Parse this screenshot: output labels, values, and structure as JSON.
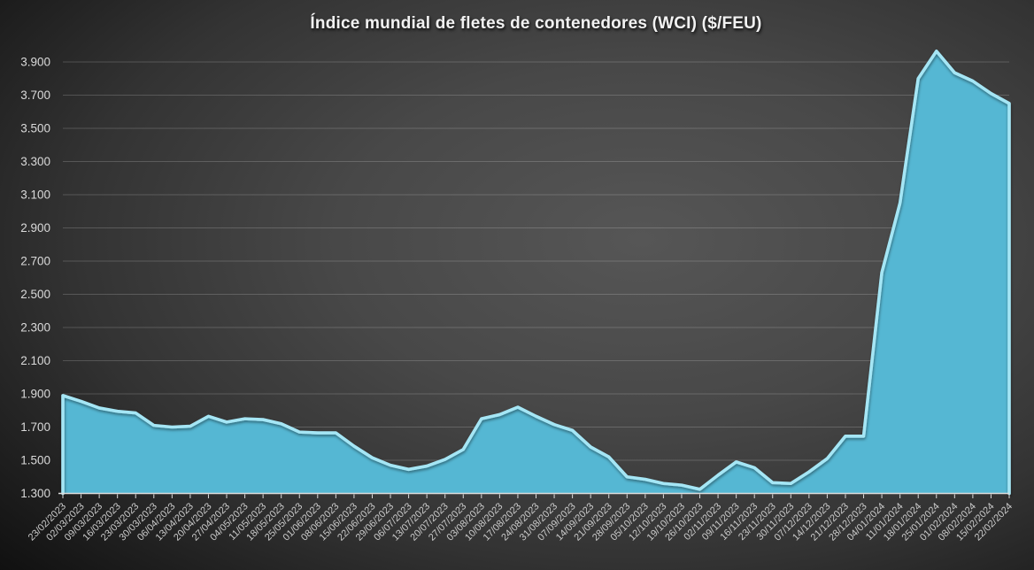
{
  "chart_data": {
    "type": "area",
    "title": "Índice mundial de fletes de contenedores (WCI) ($/FEU)",
    "xlabel": "",
    "ylabel": "",
    "ylim": [
      1300,
      3900
    ],
    "y_tick_step": 200,
    "y_tick_labels": [
      "1.300",
      "1.500",
      "1.700",
      "1.900",
      "2.100",
      "2.300",
      "2.500",
      "2.700",
      "2.900",
      "3.100",
      "3.300",
      "3.500",
      "3.700",
      "3.900"
    ],
    "grid": true,
    "legend": "none",
    "categories": [
      "23/02/2023",
      "02/03/2023",
      "09/03/2023",
      "16/03/2023",
      "23/03/2023",
      "30/03/2023",
      "06/04/2023",
      "13/04/2023",
      "20/04/2023",
      "27/04/2023",
      "04/05/2023",
      "11/05/2023",
      "18/05/2023",
      "25/05/2023",
      "01/06/2023",
      "08/06/2023",
      "15/06/2023",
      "22/06/2023",
      "29/06/2023",
      "06/07/2023",
      "13/07/2023",
      "20/07/2023",
      "27/07/2023",
      "03/08/2023",
      "10/08/2023",
      "17/08/2023",
      "24/08/2023",
      "31/08/2023",
      "07/09/2023",
      "14/09/2023",
      "21/09/2023",
      "28/09/2023",
      "05/10/2023",
      "12/10/2023",
      "19/10/2023",
      "26/10/2023",
      "02/11/2023",
      "09/11/2023",
      "16/11/2023",
      "23/11/2023",
      "30/11/2023",
      "07/12/2023",
      "14/12/2023",
      "21/12/2023",
      "28/12/2023",
      "04/01/2024",
      "11/01/2024",
      "18/01/2024",
      "25/01/2024",
      "01/02/2024",
      "08/02/2024",
      "15/02/2024",
      "22/02/2024"
    ],
    "values": [
      1890,
      1855,
      1815,
      1795,
      1785,
      1710,
      1700,
      1705,
      1765,
      1730,
      1750,
      1745,
      1720,
      1670,
      1665,
      1665,
      1585,
      1515,
      1470,
      1445,
      1465,
      1505,
      1565,
      1750,
      1775,
      1820,
      1765,
      1715,
      1680,
      1580,
      1520,
      1400,
      1385,
      1360,
      1350,
      1325,
      1410,
      1490,
      1455,
      1365,
      1360,
      1430,
      1510,
      1645,
      1645,
      2630,
      3050,
      3800,
      3965,
      3835,
      3785,
      3710,
      3650
    ],
    "colors": {
      "area_fill": "#55B7D3",
      "area_edge_highlight": "#A5E6F5",
      "gridline": "rgba(255,255,255,0.18)",
      "axis_line": "#DCDCDC",
      "y_label": "#DADADA",
      "x_label": "#CBCBCB",
      "title": "#F2F2F2"
    }
  }
}
